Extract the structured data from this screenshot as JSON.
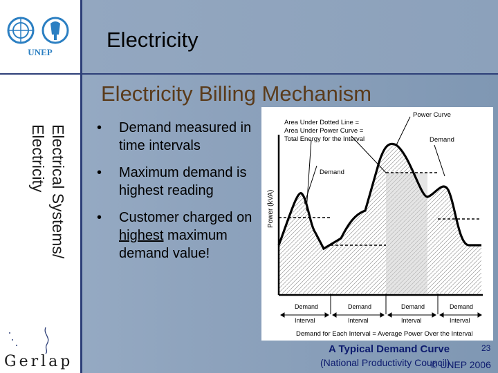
{
  "header": {
    "title": "Electricity",
    "subtitle": "Electricity Billing Mechanism",
    "logo_text": "UNEP"
  },
  "sidebar": {
    "vertical_line1": "Electrical Systems/",
    "vertical_line2": "Electricity",
    "bottom_logo_text": "Gerlap"
  },
  "bullets": {
    "symbol": "•",
    "item1": "Demand measured in time intervals",
    "item2": "Maximum demand is highest reading",
    "item3_part1": "Customer charged on ",
    "item3_link": "highest",
    "item3_part2": " maximum demand value!"
  },
  "figure": {
    "area_note_1": "Area Under Dotted Line =",
    "area_note_2": "Area Under Power Curve =",
    "area_note_3": "Total Energy for the Interval",
    "power_curve_label": "Power Curve",
    "demand_label_left": "Demand",
    "demand_label_right": "Demand",
    "y_axis_label": "Power (kVA)",
    "interval_label_1": "Demand",
    "interval_label_1b": "Interval",
    "interval_label_2": "Demand",
    "interval_label_2b": "Interval",
    "interval_label_3": "Demand",
    "interval_label_3b": "Interval",
    "interval_label_4": "Demand",
    "interval_label_4b": "Interval",
    "footer_note": "Demand for Each Interval = Average Power Over the Interval"
  },
  "caption": {
    "line1": "A Typical Demand Curve",
    "line2": "(National Productivity Council)"
  },
  "footer": {
    "page_number": "23",
    "copyright": "© UNEP 2006"
  },
  "colors": {
    "title_text": "#000000",
    "subtitle_text": "#5a3b1b",
    "caption_text": "#0d1b6e",
    "rule": "#2d3f78",
    "un_blue": "#2b7fc2"
  }
}
